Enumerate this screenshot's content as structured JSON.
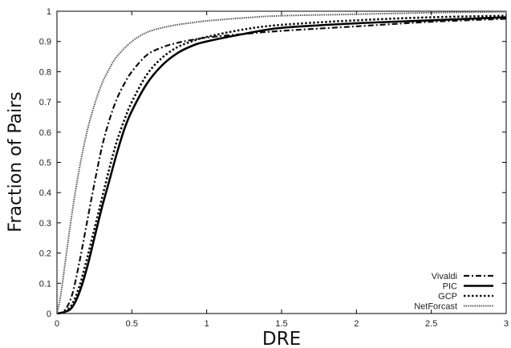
{
  "chart_data": {
    "type": "line",
    "title": "",
    "xlabel": "DRE",
    "ylabel": "Fraction of Pairs",
    "xlim": [
      0,
      3
    ],
    "ylim": [
      0,
      1
    ],
    "x_ticks": [
      "0",
      "0.5",
      "1",
      "1.5",
      "2",
      "2.5",
      "3"
    ],
    "y_ticks": [
      "0",
      "0.1",
      "0.2",
      "0.3",
      "0.4",
      "0.5",
      "0.6",
      "0.7",
      "0.8",
      "0.9",
      "1"
    ],
    "grid": false,
    "legend_position": "bottom-right",
    "series": [
      {
        "name": "Vivaldi",
        "dash": "dashdot",
        "x": [
          0,
          0.05,
          0.1,
          0.15,
          0.2,
          0.25,
          0.3,
          0.35,
          0.4,
          0.45,
          0.5,
          0.6,
          0.7,
          0.8,
          0.9,
          1.0,
          1.25,
          1.5,
          2.0,
          2.5,
          3.0
        ],
        "y": [
          0,
          0.01,
          0.06,
          0.17,
          0.3,
          0.43,
          0.55,
          0.64,
          0.71,
          0.76,
          0.8,
          0.855,
          0.88,
          0.895,
          0.905,
          0.913,
          0.925,
          0.935,
          0.95,
          0.965,
          0.975
        ]
      },
      {
        "name": "PIC",
        "dash": "solid",
        "x": [
          0,
          0.05,
          0.1,
          0.15,
          0.2,
          0.25,
          0.3,
          0.35,
          0.4,
          0.45,
          0.5,
          0.6,
          0.7,
          0.8,
          0.9,
          1.0,
          1.25,
          1.5,
          2.0,
          2.5,
          3.0
        ],
        "y": [
          0,
          0.005,
          0.02,
          0.07,
          0.15,
          0.25,
          0.35,
          0.44,
          0.53,
          0.61,
          0.67,
          0.76,
          0.82,
          0.86,
          0.885,
          0.9,
          0.925,
          0.945,
          0.96,
          0.97,
          0.98
        ]
      },
      {
        "name": "GCP",
        "dash": "dotted",
        "x": [
          0,
          0.05,
          0.1,
          0.15,
          0.2,
          0.25,
          0.3,
          0.35,
          0.4,
          0.45,
          0.5,
          0.6,
          0.7,
          0.8,
          0.9,
          1.0,
          1.25,
          1.5,
          2.0,
          2.5,
          3.0
        ],
        "y": [
          0,
          0.006,
          0.03,
          0.09,
          0.18,
          0.28,
          0.38,
          0.48,
          0.57,
          0.64,
          0.7,
          0.79,
          0.845,
          0.88,
          0.9,
          0.915,
          0.94,
          0.955,
          0.97,
          0.98,
          0.985
        ]
      },
      {
        "name": "NetForcast",
        "dash": "fine-dotted",
        "x": [
          0,
          0.025,
          0.05,
          0.1,
          0.15,
          0.2,
          0.25,
          0.3,
          0.35,
          0.4,
          0.5,
          0.6,
          0.7,
          0.8,
          0.9,
          1.0,
          1.25,
          1.5,
          2.0,
          2.5,
          3.0
        ],
        "y": [
          0,
          0.06,
          0.15,
          0.33,
          0.48,
          0.6,
          0.69,
          0.76,
          0.81,
          0.85,
          0.9,
          0.93,
          0.945,
          0.955,
          0.962,
          0.968,
          0.978,
          0.985,
          0.99,
          0.995,
          0.998
        ]
      }
    ]
  }
}
